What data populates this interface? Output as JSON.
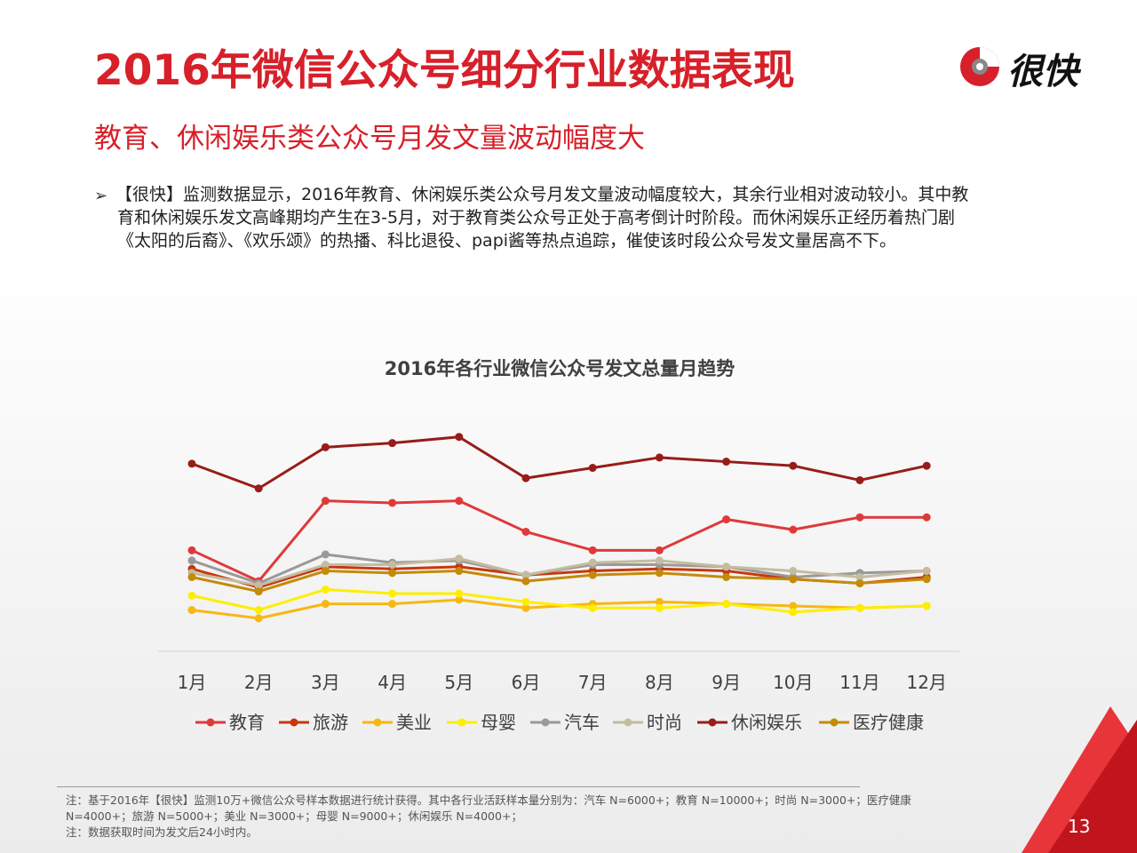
{
  "header": {
    "title": "2016年微信公众号细分行业数据表现",
    "logo_text": "很快",
    "subtitle": "教育、休闲娱乐类公众号月发文量波动幅度大"
  },
  "body": {
    "bullet": "➢",
    "lines": [
      "【很快】监测数据显示，2016年教育、休闲娱乐类公众号月发文量波动幅度较大，其余行业相对波动较小。其中教",
      "育和休闲娱乐发文高峰期均产生在3-5月，对于教育类公众号正处于高考倒计时阶段。而休闲娱乐正经历着热门剧",
      "《太阳的后裔》、《欢乐颂》的热播、科比退役、papi酱等热点追踪，催使该时段公众号发文量居高不下。"
    ]
  },
  "chart_data": {
    "type": "line",
    "title": "2016年各行业微信公众号发文总量月趋势",
    "categories": [
      "1月",
      "2月",
      "3月",
      "4月",
      "5月",
      "6月",
      "7月",
      "8月",
      "9月",
      "10月",
      "11月",
      "12月"
    ],
    "ylim": [
      0,
      100
    ],
    "grid": false,
    "legend": "bottom",
    "series": [
      {
        "name": "教育",
        "color": "#e0393a",
        "values": [
          49,
          34,
          73,
          72,
          73,
          58,
          49,
          49,
          64,
          59,
          65,
          65
        ]
      },
      {
        "name": "旅游",
        "color": "#c8370c",
        "values": [
          40,
          31,
          41,
          40,
          41,
          37,
          39,
          40,
          39,
          35,
          33,
          36
        ]
      },
      {
        "name": "美业",
        "color": "#f8b712",
        "values": [
          20,
          16,
          23,
          23,
          25,
          21,
          23,
          24,
          23,
          22,
          21,
          22
        ]
      },
      {
        "name": "母婴",
        "color": "#fdee00",
        "values": [
          27,
          20,
          30,
          28,
          28,
          24,
          21,
          21,
          23,
          19,
          21,
          22
        ]
      },
      {
        "name": "汽车",
        "color": "#999999",
        "values": [
          44,
          33,
          47,
          43,
          44,
          37,
          42,
          42,
          41,
          36,
          38,
          39
        ]
      },
      {
        "name": "时尚",
        "color": "#c4bca0",
        "values": [
          38,
          32,
          42,
          42,
          45,
          37,
          43,
          44,
          41,
          39,
          36,
          39
        ]
      },
      {
        "name": "休闲娱乐",
        "color": "#971d19",
        "values": [
          91,
          79,
          99,
          101,
          104,
          84,
          89,
          94,
          92,
          90,
          83,
          90
        ]
      },
      {
        "name": "医疗健康",
        "color": "#c48b08",
        "values": [
          36,
          29,
          39,
          38,
          39,
          34,
          37,
          38,
          36,
          35,
          33,
          35
        ]
      }
    ]
  },
  "footnote": {
    "lines": [
      "注：基于2016年【很快】监测10万+微信公众号样本数据进行统计获得。其中各行业活跃样本量分别为：汽车 N=6000+；教育 N=10000+；时尚 N=3000+；医疗健康",
      "N=4000+；旅游 N=5000+；美业 N=3000+；母婴 N=9000+；休闲娱乐 N=4000+；",
      "注：数据获取时间为发文后24小时内。"
    ]
  },
  "page_number": "13",
  "colors": {
    "accent": "#d7202a",
    "corner_dark": "#c0151c",
    "corner_light": "#e8353a"
  }
}
